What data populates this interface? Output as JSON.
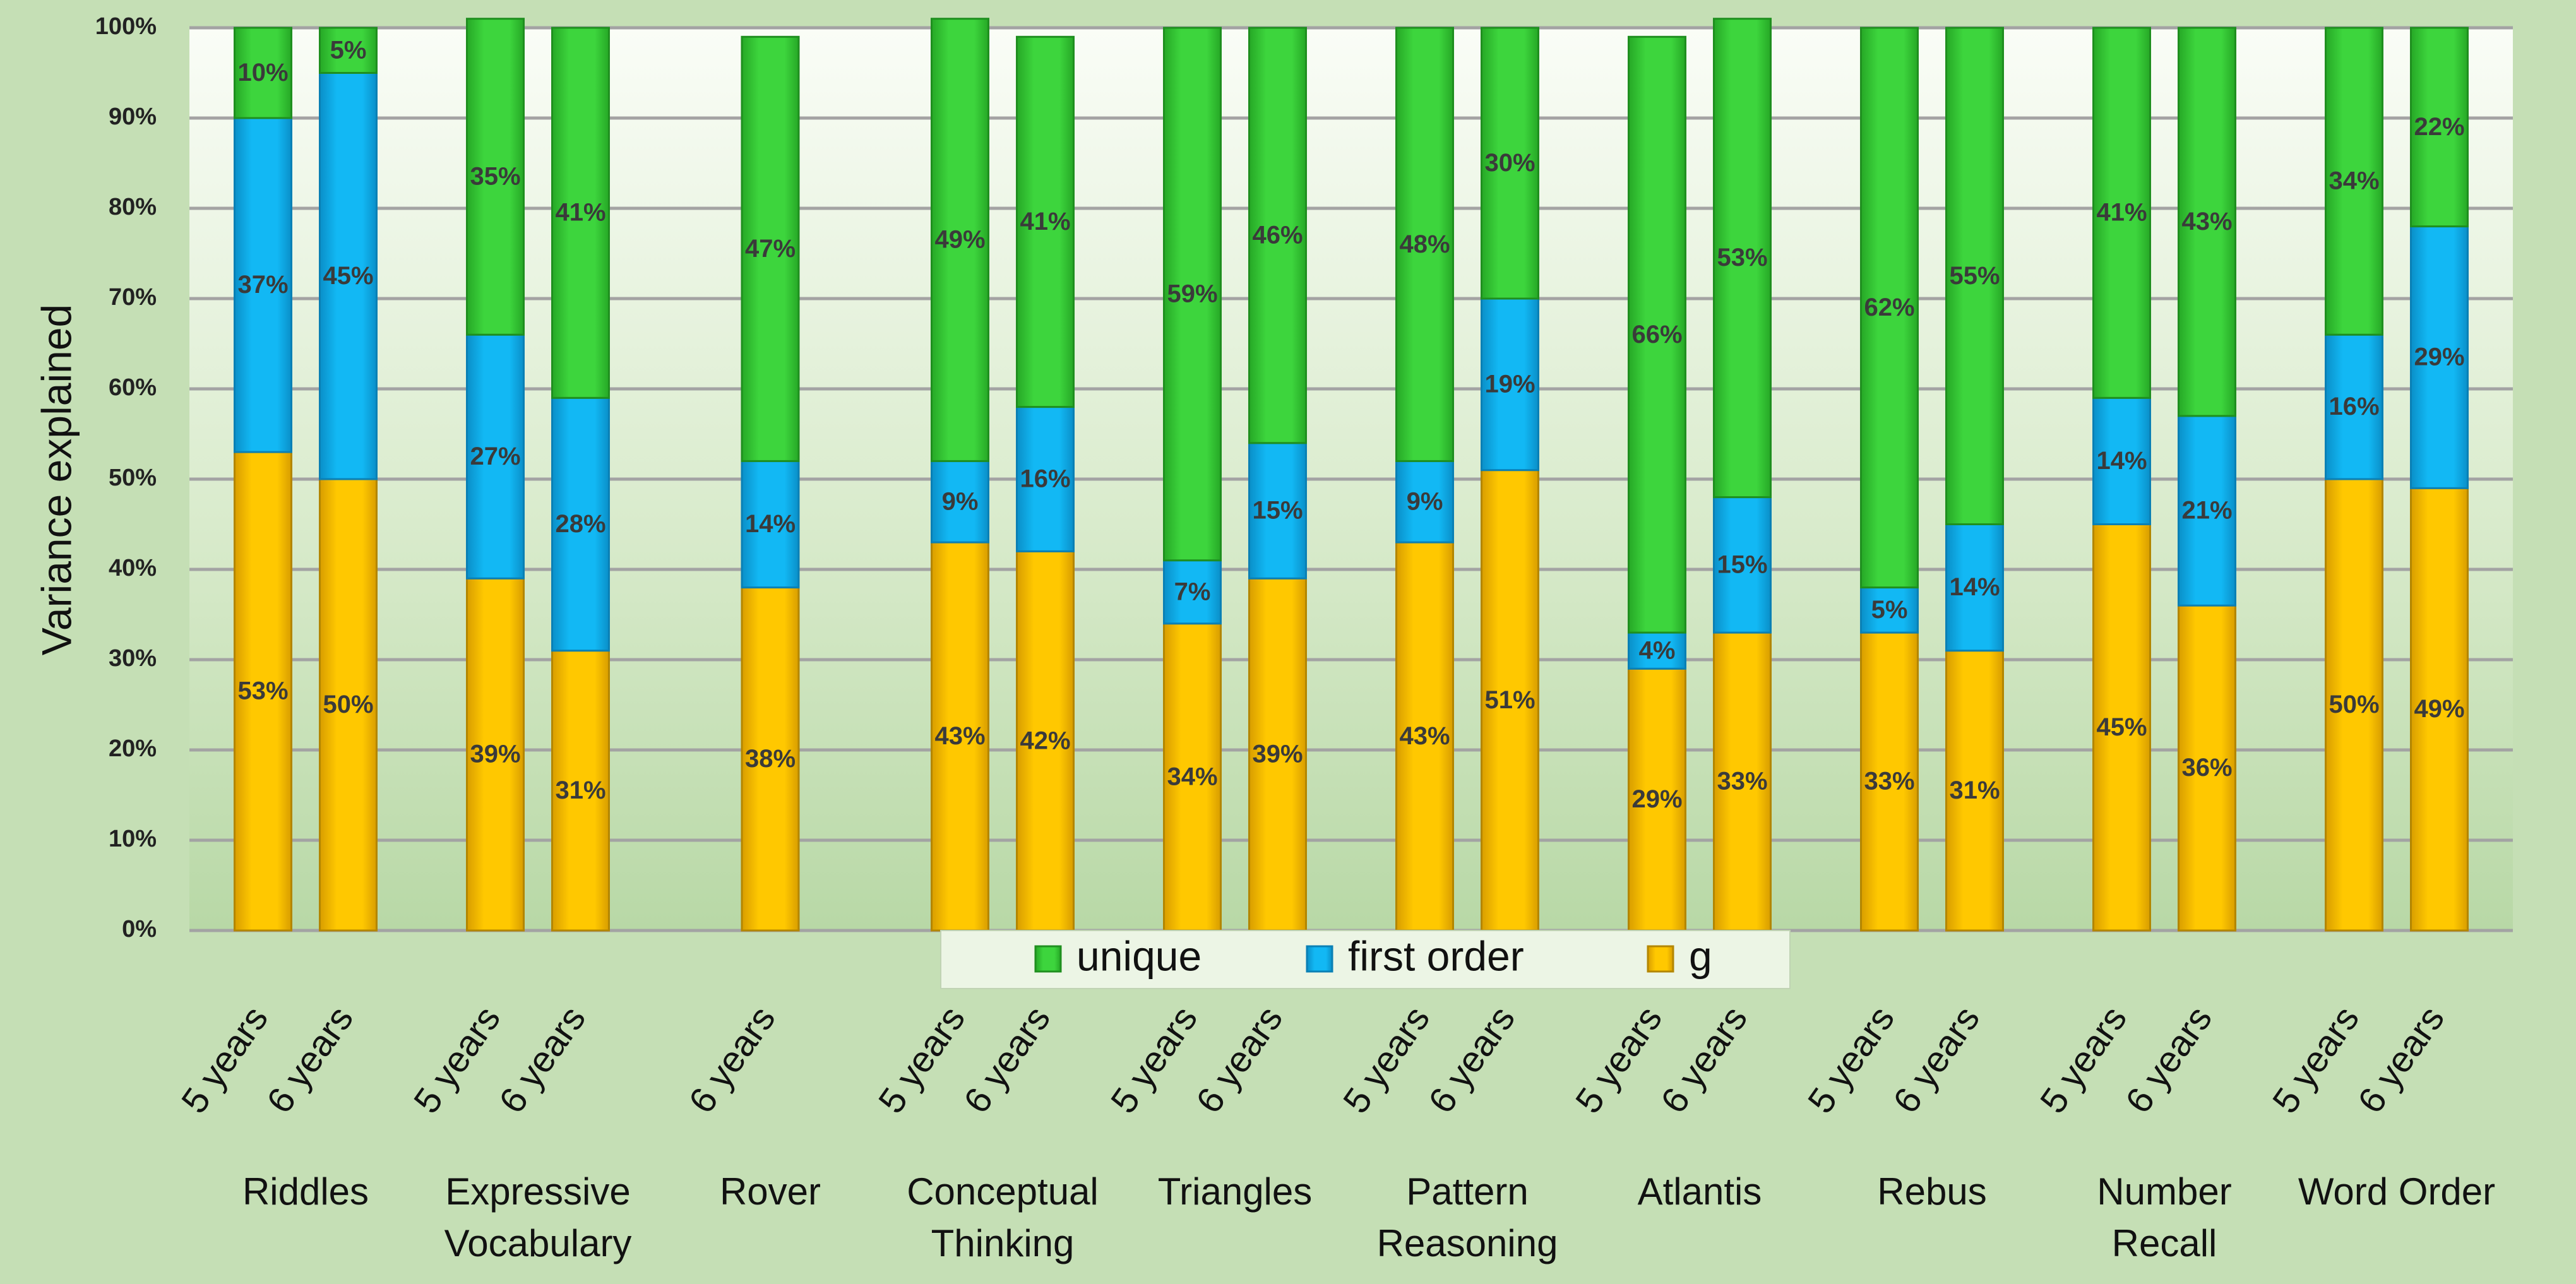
{
  "chart_data": {
    "type": "bar",
    "stacked": true,
    "ylabel": "Variance explained",
    "ylim": [
      0,
      100
    ],
    "yticks": [
      "0%",
      "10%",
      "20%",
      "30%",
      "40%",
      "50%",
      "60%",
      "70%",
      "80%",
      "90%",
      "100%"
    ],
    "legend": {
      "placement": "bottom-center",
      "entries": [
        {
          "name": "unique",
          "color": "#3cd23c"
        },
        {
          "name": "first order",
          "color": "#0fb4f0"
        },
        {
          "name": "g",
          "color": "#ffc400"
        }
      ]
    },
    "groups": [
      {
        "lines": [
          "Riddles"
        ],
        "bars": [
          {
            "age": "5 years",
            "g": 53,
            "first_order": 37,
            "unique": 10
          },
          {
            "age": "6 years",
            "g": 50,
            "first_order": 45,
            "unique": 5
          }
        ]
      },
      {
        "lines": [
          "Expressive",
          "Vocabulary"
        ],
        "bars": [
          {
            "age": "5 years",
            "g": 39,
            "first_order": 27,
            "unique": 35
          },
          {
            "age": "6 years",
            "g": 31,
            "first_order": 28,
            "unique": 41
          }
        ]
      },
      {
        "lines": [
          "Rover"
        ],
        "bars": [
          {
            "age": "6 years",
            "g": 38,
            "first_order": 14,
            "unique": 47
          }
        ]
      },
      {
        "lines": [
          "Conceptual",
          "Thinking"
        ],
        "bars": [
          {
            "age": "5 years",
            "g": 43,
            "first_order": 9,
            "unique": 49
          },
          {
            "age": "6 years",
            "g": 42,
            "first_order": 16,
            "unique": 41
          }
        ]
      },
      {
        "lines": [
          "Triangles"
        ],
        "bars": [
          {
            "age": "5 years",
            "g": 34,
            "first_order": 7,
            "unique": 59
          },
          {
            "age": "6 years",
            "g": 39,
            "first_order": 15,
            "unique": 46
          }
        ]
      },
      {
        "lines": [
          "Pattern",
          "Reasoning"
        ],
        "bars": [
          {
            "age": "5 years",
            "g": 43,
            "first_order": 9,
            "unique": 48
          },
          {
            "age": "6 years",
            "g": 51,
            "first_order": 19,
            "unique": 30
          }
        ]
      },
      {
        "lines": [
          "Atlantis"
        ],
        "bars": [
          {
            "age": "5 years",
            "g": 29,
            "first_order": 4,
            "unique": 66
          },
          {
            "age": "6 years",
            "g": 33,
            "first_order": 15,
            "unique": 53
          }
        ]
      },
      {
        "lines": [
          "Rebus"
        ],
        "bars": [
          {
            "age": "5 years",
            "g": 33,
            "first_order": 5,
            "unique": 62
          },
          {
            "age": "6 years",
            "g": 31,
            "first_order": 14,
            "unique": 55
          }
        ]
      },
      {
        "lines": [
          "Number",
          "Recall"
        ],
        "bars": [
          {
            "age": "5 years",
            "g": 45,
            "first_order": 14,
            "unique": 41
          },
          {
            "age": "6 years",
            "g": 36,
            "first_order": 21,
            "unique": 43
          }
        ]
      },
      {
        "lines": [
          "Word Order"
        ],
        "bars": [
          {
            "age": "5 years",
            "g": 50,
            "first_order": 16,
            "unique": 34
          },
          {
            "age": "6 years",
            "g": 49,
            "first_order": 29,
            "unique": 22
          }
        ]
      }
    ]
  }
}
